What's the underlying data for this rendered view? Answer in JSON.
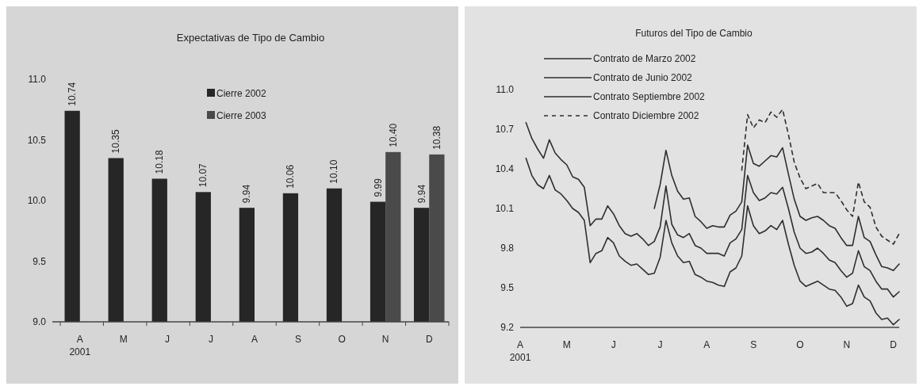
{
  "chart_data": [
    {
      "type": "bar",
      "title": "Expectativas de Tipo de Cambio",
      "categories": [
        "A\n2001",
        "M",
        "J",
        "J",
        "A",
        "S",
        "O",
        "N",
        "D"
      ],
      "series": [
        {
          "name": "Cierre 2002",
          "color": "#262626",
          "values": [
            10.74,
            10.35,
            10.18,
            10.07,
            9.94,
            10.06,
            10.1,
            9.99,
            9.94
          ],
          "value_labels": [
            "10.74",
            "10.35",
            "10.18",
            "10.07",
            "9.94",
            "10.06",
            "10.10",
            "9.99",
            "9.94"
          ]
        },
        {
          "name": "Cierre 2003",
          "color": "#4a4a4a",
          "values": [
            null,
            null,
            null,
            null,
            null,
            null,
            null,
            10.4,
            10.38
          ],
          "value_labels": [
            null,
            null,
            null,
            null,
            null,
            null,
            null,
            "10.40",
            "10.38"
          ]
        }
      ],
      "ylim": [
        9.0,
        11.0
      ],
      "yticks": [
        {
          "value": 9.0,
          "label": "9.0"
        },
        {
          "value": 9.5,
          "label": "9.5"
        },
        {
          "value": 10.0,
          "label": "10.0"
        },
        {
          "value": 10.5,
          "label": "10.5"
        },
        {
          "value": 11.0,
          "label": "11.0"
        }
      ],
      "grid": false,
      "legend": "top"
    },
    {
      "type": "line",
      "title": "Futuros del Tipo de Cambio",
      "categories": [
        "A\n2001",
        null,
        null,
        null,
        null,
        null,
        null,
        null,
        "M",
        null,
        null,
        null,
        null,
        null,
        null,
        null,
        "J",
        null,
        null,
        null,
        null,
        null,
        null,
        null,
        "J",
        null,
        null,
        null,
        null,
        null,
        null,
        null,
        "A",
        null,
        null,
        null,
        null,
        null,
        null,
        null,
        "S",
        null,
        null,
        null,
        null,
        null,
        null,
        null,
        "O",
        null,
        null,
        null,
        null,
        null,
        null,
        null,
        "N",
        null,
        null,
        null,
        null,
        null,
        null,
        null,
        "D",
        null
      ],
      "ylim": [
        9.2,
        11.0
      ],
      "yticks": [
        {
          "value": 9.2,
          "label": "9.2"
        },
        {
          "value": 9.5,
          "label": "9.5"
        },
        {
          "value": 9.8,
          "label": "9.8"
        },
        {
          "value": 10.1,
          "label": "10.1"
        },
        {
          "value": 10.4,
          "label": "10.4"
        },
        {
          "value": 10.7,
          "label": "10.7"
        },
        {
          "value": 11.0,
          "label": "11.0"
        }
      ],
      "grid": false,
      "legend": "top left",
      "marker": "none",
      "series": [
        {
          "name": "Contrato de Marzo 2002",
          "color": "#2e2e2e",
          "line_style": "solid",
          "values": [
            null,
            10.48,
            10.35,
            10.28,
            10.25,
            10.35,
            10.24,
            10.21,
            10.16,
            10.1,
            10.07,
            10.01,
            9.69,
            9.76,
            9.78,
            9.88,
            9.84,
            9.74,
            9.7,
            9.67,
            9.68,
            9.64,
            9.6,
            9.61,
            9.73,
            10.01,
            9.84,
            9.74,
            9.69,
            9.7,
            9.6,
            9.58,
            9.55,
            9.54,
            9.52,
            9.51,
            9.62,
            9.65,
            9.74,
            10.12,
            9.97,
            9.91,
            9.93,
            9.97,
            9.94,
            10.01,
            9.83,
            9.67,
            9.55,
            9.51,
            9.53,
            9.55,
            9.52,
            9.49,
            9.48,
            9.43,
            9.36,
            9.38,
            9.52,
            9.43,
            9.4,
            9.31,
            9.26,
            9.27,
            9.22,
            9.26
          ]
        },
        {
          "name": "Contrato de Junio 2002",
          "color": "#2e2e2e",
          "line_style": "solid",
          "values": [
            null,
            10.75,
            10.63,
            10.55,
            10.48,
            10.62,
            10.52,
            10.47,
            10.43,
            10.34,
            10.32,
            10.26,
            9.97,
            10.02,
            10.02,
            10.12,
            10.06,
            9.97,
            9.91,
            9.89,
            9.91,
            9.87,
            9.82,
            9.85,
            9.96,
            10.27,
            9.98,
            9.9,
            9.88,
            9.91,
            9.82,
            9.8,
            9.76,
            9.76,
            9.76,
            9.74,
            9.84,
            9.87,
            9.94,
            10.35,
            10.22,
            10.16,
            10.18,
            10.22,
            10.21,
            10.26,
            10.1,
            9.92,
            9.8,
            9.76,
            9.77,
            9.8,
            9.76,
            9.71,
            9.69,
            9.63,
            9.58,
            9.61,
            9.78,
            9.66,
            9.63,
            9.55,
            9.49,
            9.49,
            9.43,
            9.47
          ]
        },
        {
          "name": "Contrato Septiembre 2002",
          "color": "#2e2e2e",
          "line_style": "solid",
          "values": [
            null,
            null,
            null,
            null,
            null,
            null,
            null,
            null,
            null,
            null,
            null,
            null,
            null,
            null,
            null,
            null,
            null,
            null,
            null,
            null,
            null,
            null,
            null,
            10.1,
            10.28,
            10.54,
            10.35,
            10.23,
            10.17,
            10.18,
            10.04,
            10.0,
            9.95,
            9.97,
            9.96,
            9.96,
            10.05,
            10.08,
            10.15,
            10.58,
            10.44,
            10.42,
            10.46,
            10.5,
            10.49,
            10.56,
            10.36,
            10.17,
            10.04,
            10.01,
            10.03,
            10.04,
            10.01,
            9.97,
            9.95,
            9.88,
            9.82,
            9.82,
            10.04,
            9.88,
            9.85,
            9.75,
            9.66,
            9.65,
            9.63,
            9.68
          ]
        },
        {
          "name": "Contrato Diciembre 2002",
          "color": "#2e2e2e",
          "line_style": "dashed",
          "values": [
            null,
            null,
            null,
            null,
            null,
            null,
            null,
            null,
            null,
            null,
            null,
            null,
            null,
            null,
            null,
            null,
            null,
            null,
            null,
            null,
            null,
            null,
            null,
            null,
            null,
            null,
            null,
            null,
            null,
            null,
            null,
            null,
            null,
            null,
            null,
            null,
            null,
            null,
            10.39,
            10.81,
            10.71,
            10.77,
            10.75,
            10.83,
            10.79,
            10.85,
            10.66,
            10.45,
            10.33,
            10.25,
            10.27,
            10.29,
            10.22,
            10.22,
            10.22,
            10.16,
            10.09,
            10.04,
            10.3,
            10.15,
            10.11,
            9.96,
            9.89,
            9.86,
            9.83,
            9.91
          ]
        }
      ]
    }
  ]
}
